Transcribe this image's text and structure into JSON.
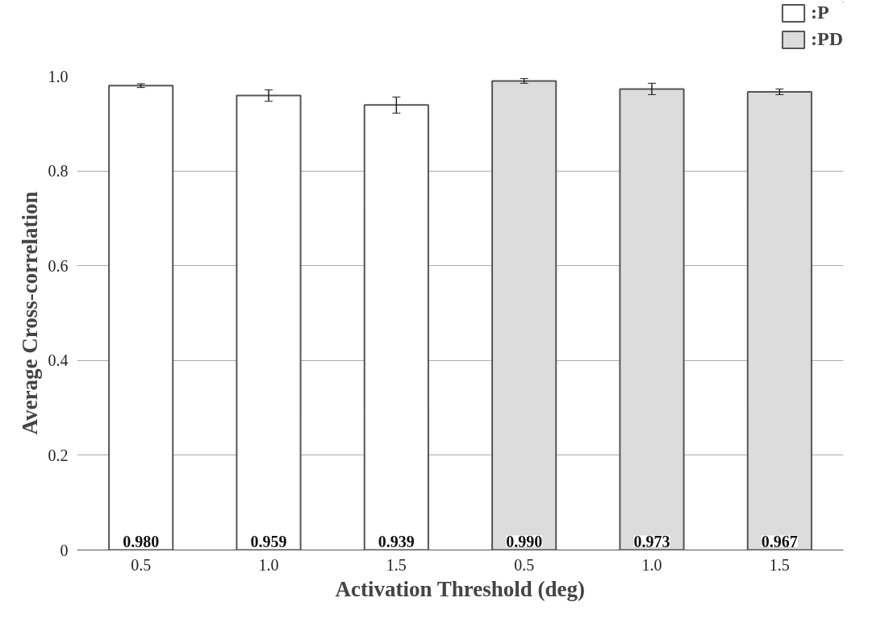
{
  "chart_data": {
    "type": "bar",
    "xlabel": "Activation Threshold (deg)",
    "ylabel": "Average Cross-correlation",
    "categories": [
      "0.5",
      "1.0",
      "1.5",
      "0.5",
      "1.0",
      "1.5"
    ],
    "series": [
      {
        "name": ":P",
        "color": "#ffffff",
        "values": [
          0.98,
          0.959,
          0.939,
          null,
          null,
          null
        ],
        "errors": [
          0.004,
          0.012,
          0.017,
          null,
          null,
          null
        ],
        "value_labels": [
          "0.980",
          "0.959",
          "0.939",
          null,
          null,
          null
        ]
      },
      {
        "name": ":PD",
        "color": "#dcdcdc",
        "values": [
          null,
          null,
          null,
          0.99,
          0.973,
          0.967
        ],
        "errors": [
          null,
          null,
          null,
          0.005,
          0.012,
          0.006
        ],
        "value_labels": [
          null,
          null,
          null,
          "0.990",
          "0.973",
          "0.967"
        ]
      }
    ],
    "ylim": [
      0,
      1
    ],
    "yticks": [
      0,
      0.2,
      0.4,
      0.6,
      0.8,
      {
        "value": 1,
        "label": "1.0"
      }
    ],
    "grid": "y",
    "legend": "top right"
  }
}
